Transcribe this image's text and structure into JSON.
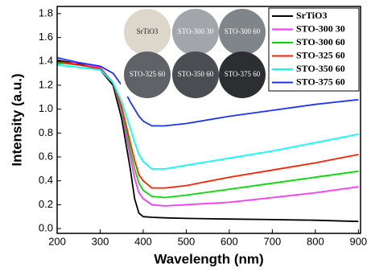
{
  "chart_data": {
    "type": "line",
    "x_label": "Wavelength (nm)",
    "y_label": "Intensity (a.u.)",
    "xlim": [
      200,
      905
    ],
    "ylim": [
      -0.04,
      1.86
    ],
    "xticks": [
      200,
      300,
      400,
      500,
      600,
      700,
      800,
      900
    ],
    "yticks": [
      {
        "value": 0,
        "label": "0.0"
      },
      0.2,
      0.4,
      0.6,
      0.8,
      {
        "value": 1,
        "label": "1.0"
      },
      1.2,
      1.4,
      1.6,
      1.8
    ],
    "legend": "upper right",
    "inset_labels": [
      "SrTiO3",
      "STO-300 30",
      "STO-300 60",
      "STO-325 60",
      "STO-350 60",
      "STO-375 60"
    ],
    "x": [
      200,
      250,
      300,
      330,
      350,
      370,
      380,
      390,
      400,
      420,
      450,
      500,
      600,
      700,
      800,
      900
    ],
    "series": [
      {
        "name": "SrTiO3",
        "color": "#000000",
        "values": [
          1.41,
          1.38,
          1.33,
          1.2,
          0.92,
          0.5,
          0.25,
          0.13,
          0.1,
          0.095,
          0.09,
          0.085,
          0.08,
          0.075,
          0.07,
          0.06
        ]
      },
      {
        "name": "STO-300 30",
        "color": "#ff33ff",
        "values": [
          1.38,
          1.39,
          1.35,
          1.22,
          0.98,
          0.6,
          0.42,
          0.3,
          0.25,
          0.2,
          0.19,
          0.2,
          0.22,
          0.26,
          0.3,
          0.35
        ]
      },
      {
        "name": "STO-300 60",
        "color": "#00dd00",
        "values": [
          1.39,
          1.37,
          1.34,
          1.22,
          1.0,
          0.66,
          0.5,
          0.38,
          0.32,
          0.27,
          0.26,
          0.28,
          0.33,
          0.38,
          0.43,
          0.48
        ]
      },
      {
        "name": "STO-325 60",
        "color": "#ff2200",
        "values": [
          1.4,
          1.37,
          1.34,
          1.22,
          1.02,
          0.72,
          0.57,
          0.45,
          0.4,
          0.34,
          0.34,
          0.36,
          0.43,
          0.49,
          0.55,
          0.62
        ]
      },
      {
        "name": "STO-350 60",
        "color": "#00ffff",
        "values": [
          1.37,
          1.35,
          1.33,
          1.22,
          1.06,
          0.84,
          0.72,
          0.62,
          0.56,
          0.5,
          0.5,
          0.53,
          0.59,
          0.65,
          0.72,
          0.79
        ]
      },
      {
        "name": "STO-375 60",
        "color": "#1a33ff",
        "values": [
          1.43,
          1.39,
          1.36,
          1.3,
          1.2,
          1.06,
          1.0,
          0.94,
          0.9,
          0.86,
          0.86,
          0.88,
          0.94,
          0.99,
          1.04,
          1.08
        ]
      }
    ]
  }
}
